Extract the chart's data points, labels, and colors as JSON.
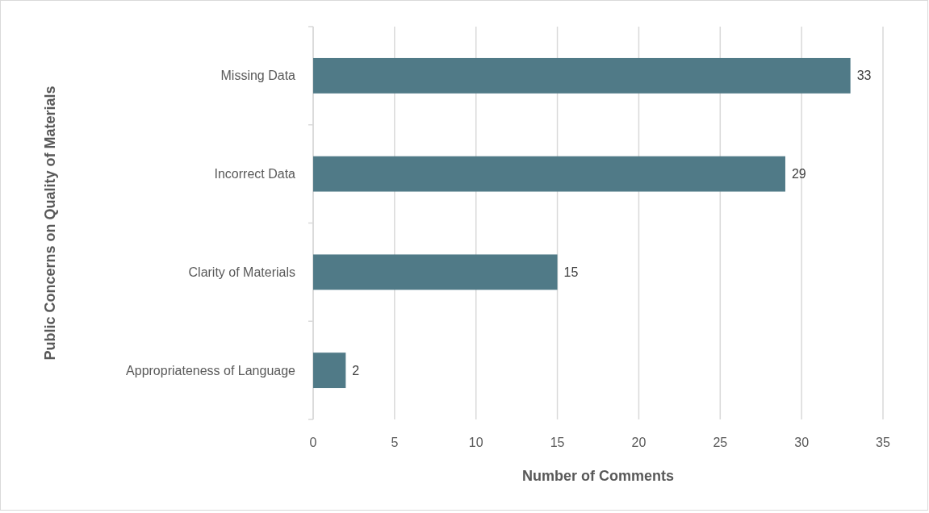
{
  "chart_data": {
    "type": "bar",
    "orientation": "horizontal",
    "xlabel": "Number of Comments",
    "ylabel": "Public Concerns on Quality of Materials",
    "categories": [
      "Missing Data",
      "Incorrect Data",
      "Clarity of Materials",
      "Appropriateness of Language"
    ],
    "values": [
      33,
      29,
      15,
      2
    ],
    "color": "#507a87",
    "data_labels": true,
    "xlim": [
      0,
      35
    ],
    "xticks": [
      0,
      5,
      10,
      15,
      20,
      25,
      30,
      35
    ],
    "grid": "x"
  }
}
